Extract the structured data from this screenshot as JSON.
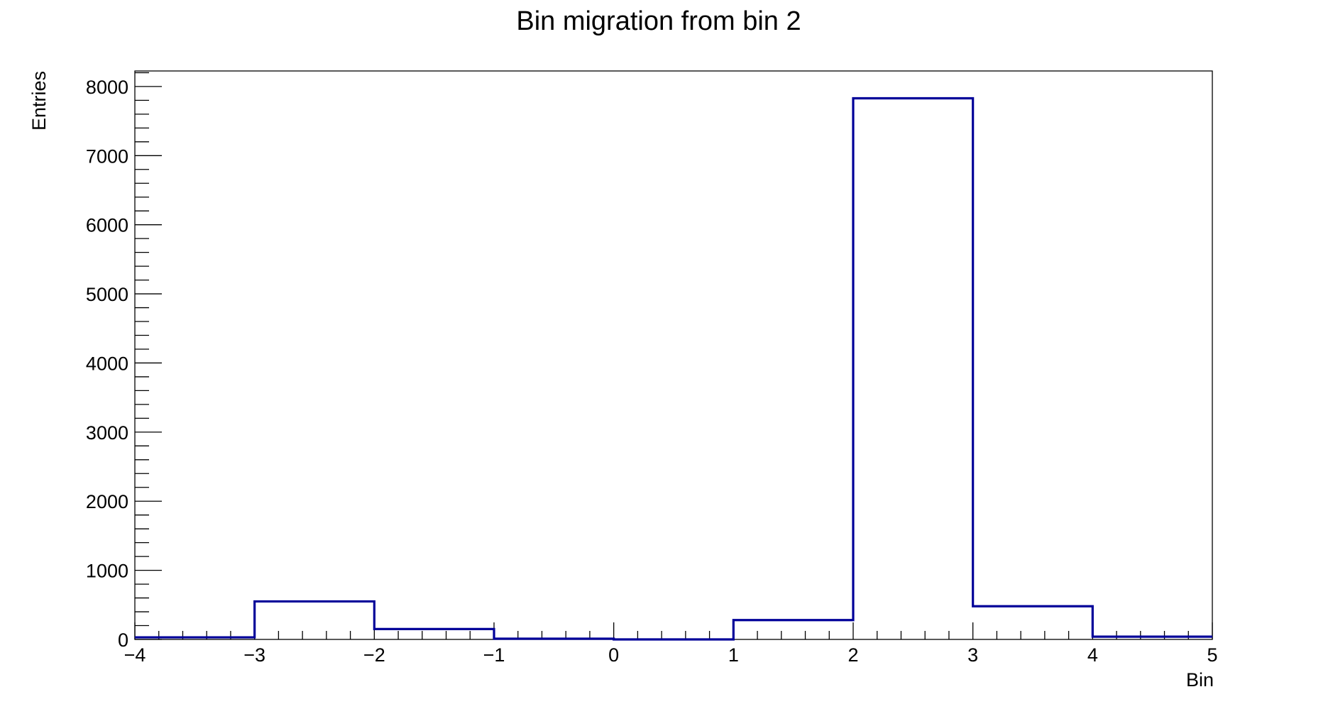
{
  "chart_data": {
    "type": "histogram",
    "title": "Bin migration from bin 2",
    "xlabel": "Bin",
    "ylabel": "Entries",
    "xlim": [
      -4,
      5
    ],
    "ylim": [
      0,
      8225
    ],
    "grid": false,
    "line_color": "#000099",
    "bin_edges": [
      -4,
      -3,
      -2,
      -1,
      0,
      1,
      2,
      3,
      4,
      5
    ],
    "values": [
      30,
      550,
      150,
      10,
      0,
      280,
      7830,
      480,
      40
    ],
    "x_ticks": [
      {
        "value": -4,
        "label": "−4"
      },
      {
        "value": -3,
        "label": "−3"
      },
      {
        "value": -2,
        "label": "−2"
      },
      {
        "value": -1,
        "label": "−1"
      },
      {
        "value": 0,
        "label": "0"
      },
      {
        "value": 1,
        "label": "1"
      },
      {
        "value": 2,
        "label": "2"
      },
      {
        "value": 3,
        "label": "3"
      },
      {
        "value": 4,
        "label": "4"
      },
      {
        "value": 5,
        "label": "5"
      }
    ],
    "y_ticks": [
      {
        "value": 0,
        "label": "0"
      },
      {
        "value": 1000,
        "label": "1000"
      },
      {
        "value": 2000,
        "label": "2000"
      },
      {
        "value": 3000,
        "label": "3000"
      },
      {
        "value": 4000,
        "label": "4000"
      },
      {
        "value": 5000,
        "label": "5000"
      },
      {
        "value": 6000,
        "label": "6000"
      },
      {
        "value": 7000,
        "label": "7000"
      },
      {
        "value": 8000,
        "label": "8000"
      }
    ]
  }
}
